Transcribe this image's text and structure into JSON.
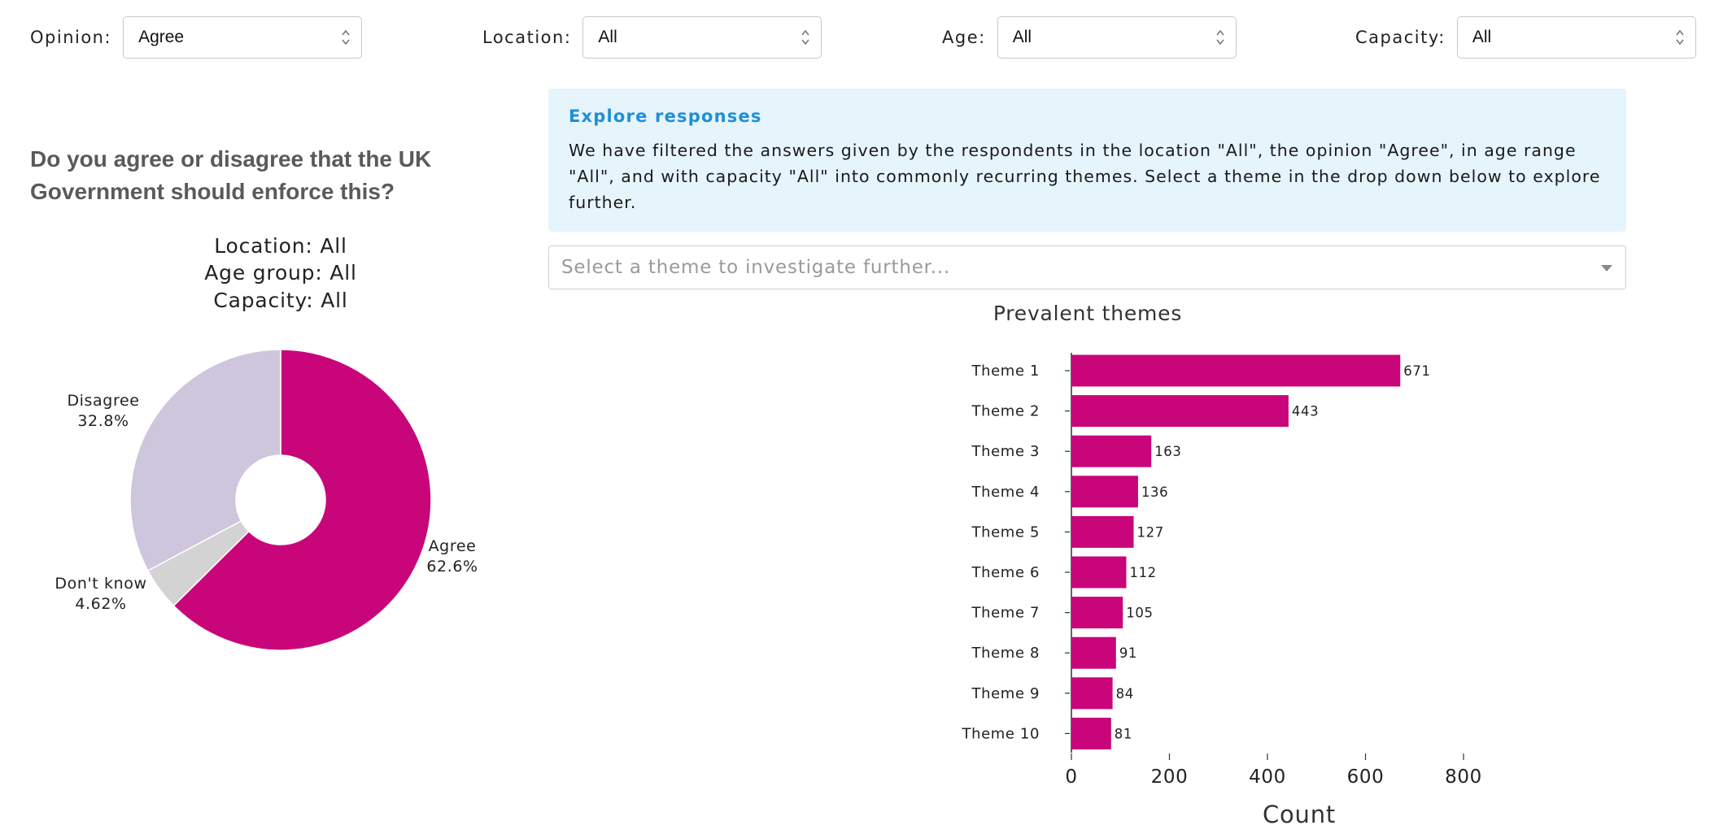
{
  "filters": [
    {
      "label": "Opinion:",
      "value": "Agree"
    },
    {
      "label": "Location:",
      "value": "All"
    },
    {
      "label": "Age:",
      "value": "All"
    },
    {
      "label": "Capacity:",
      "value": "All"
    }
  ],
  "question": "Do you agree or disagree that the UK Government should enforce this?",
  "pie_titles": [
    "Location: All",
    "Age group: All",
    "Capacity: All"
  ],
  "info": {
    "title": "Explore responses",
    "body": "We have filtered the answers given by the respondents in the location \"All\", the opinion \"Agree\", in age range \"All\", and with capacity \"All\" into commonly recurring themes. Select a theme in the drop down below to explore further."
  },
  "theme_select": {
    "placeholder": "Select a theme to investigate further..."
  },
  "chart_data": [
    {
      "type": "pie",
      "labels": [
        "Agree",
        "Don't know",
        "Disagree"
      ],
      "values": [
        62.6,
        4.62,
        32.8
      ],
      "value_labels": [
        "62.6%",
        "4.62%",
        "32.8%"
      ],
      "colors": [
        "#c8067a",
        "#d3d3d3",
        "#cdc6dc"
      ],
      "hole": true
    },
    {
      "type": "bar",
      "orientation": "horizontal",
      "title": "Prevalent themes",
      "xlabel": "Count",
      "categories": [
        "Theme 1",
        "Theme 2",
        "Theme 3",
        "Theme 4",
        "Theme 5",
        "Theme 6",
        "Theme 7",
        "Theme 8",
        "Theme 9",
        "Theme 10"
      ],
      "values": [
        671,
        443,
        163,
        136,
        127,
        112,
        105,
        91,
        84,
        81
      ],
      "xticks": [
        0,
        200,
        400,
        600,
        800
      ],
      "xlim": [
        0,
        800
      ],
      "color": "#c8067a"
    }
  ]
}
